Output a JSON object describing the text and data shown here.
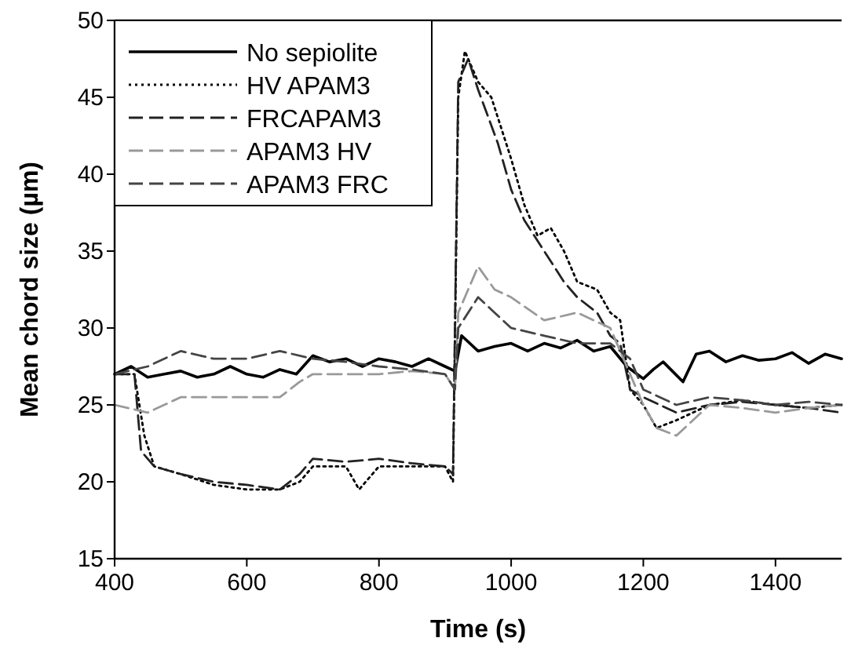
{
  "chart_data": {
    "type": "line",
    "xlabel": "Time (s)",
    "ylabel": "Mean chord size (µm)",
    "xlim": [
      400,
      1500
    ],
    "xticks": [
      400,
      600,
      800,
      1000,
      1200,
      1400
    ],
    "ylim": [
      15,
      50
    ],
    "yticks": [
      15,
      20,
      25,
      30,
      35,
      40,
      45,
      50
    ],
    "grid": false,
    "legend": "top left",
    "marker": "none",
    "series": [
      {
        "name": "No sepiolite",
        "color": "#000000",
        "line_style": "solid",
        "x": [
          400,
          425,
          450,
          475,
          500,
          525,
          550,
          575,
          600,
          625,
          650,
          675,
          700,
          725,
          750,
          775,
          800,
          825,
          850,
          875,
          900,
          915,
          925,
          950,
          975,
          1000,
          1025,
          1050,
          1075,
          1100,
          1125,
          1150,
          1175,
          1200,
          1215,
          1230,
          1260,
          1280,
          1300,
          1325,
          1350,
          1375,
          1400,
          1425,
          1450,
          1475,
          1500
        ],
        "values": [
          27,
          27.5,
          26.8,
          27,
          27.2,
          26.8,
          27,
          27.5,
          27,
          26.8,
          27.3,
          27,
          28.2,
          27.8,
          28,
          27.5,
          28,
          27.8,
          27.5,
          28,
          27.5,
          27.2,
          29.5,
          28.5,
          28.8,
          29,
          28.5,
          29,
          28.7,
          29.2,
          28.5,
          28.8,
          27.5,
          26.7,
          27.3,
          27.8,
          26.5,
          28.3,
          28.5,
          27.8,
          28.2,
          27.9,
          28,
          28.4,
          27.7,
          28.3,
          28
        ]
      },
      {
        "name": "HV APAM3",
        "color": "#000000",
        "line_style": "dotted",
        "x": [
          400,
          430,
          445,
          460,
          500,
          550,
          600,
          650,
          680,
          700,
          750,
          770,
          800,
          850,
          900,
          912,
          920,
          930,
          950,
          970,
          1000,
          1020,
          1040,
          1060,
          1080,
          1100,
          1130,
          1150,
          1165,
          1180,
          1200,
          1220,
          1250,
          1300,
          1350,
          1400,
          1450,
          1500
        ],
        "values": [
          27,
          27,
          23,
          21,
          20.5,
          19.8,
          19.5,
          19.5,
          20,
          21,
          21,
          19.5,
          21,
          21,
          21,
          20,
          45,
          48,
          46,
          45,
          41,
          38,
          36,
          36.5,
          35,
          33,
          32.5,
          31,
          30.5,
          26,
          25,
          23.5,
          24,
          25,
          25.3,
          25,
          24.8,
          25
        ]
      },
      {
        "name": "FRCAPAM3",
        "color": "#222222",
        "line_style": "dashed",
        "x": [
          400,
          430,
          440,
          460,
          500,
          550,
          600,
          650,
          680,
          700,
          750,
          800,
          850,
          900,
          912,
          920,
          935,
          950,
          980,
          1000,
          1020,
          1050,
          1080,
          1100,
          1130,
          1150,
          1165,
          1180,
          1200,
          1250,
          1300,
          1350,
          1400,
          1450,
          1500
        ],
        "values": [
          27,
          27,
          22,
          21,
          20.5,
          20,
          19.8,
          19.5,
          20.5,
          21.5,
          21.3,
          21.5,
          21.2,
          21,
          20.5,
          46,
          47.5,
          45.5,
          42,
          39,
          37,
          35,
          33,
          32,
          31,
          29.5,
          29,
          26,
          25.5,
          24.5,
          25,
          25.2,
          25,
          24.8,
          24.5
        ]
      },
      {
        "name": "APAM3 HV",
        "color": "#999999",
        "line_style": "dashed",
        "x": [
          400,
          450,
          500,
          550,
          600,
          650,
          680,
          700,
          750,
          800,
          850,
          900,
          915,
          920,
          950,
          975,
          1000,
          1050,
          1100,
          1150,
          1180,
          1200,
          1220,
          1250,
          1300,
          1350,
          1400,
          1450,
          1500
        ],
        "values": [
          25,
          24.5,
          25.5,
          25.5,
          25.5,
          25.5,
          26.5,
          27,
          27,
          27,
          27.2,
          27,
          26,
          31,
          34,
          32.5,
          32,
          30.5,
          31,
          30,
          27,
          25,
          23.5,
          23,
          25,
          24.8,
          24.5,
          24.8,
          25
        ]
      },
      {
        "name": "APAM3 FRC",
        "color": "#444444",
        "line_style": "dashed",
        "x": [
          400,
          450,
          500,
          550,
          600,
          650,
          700,
          750,
          800,
          850,
          900,
          915,
          920,
          950,
          975,
          1000,
          1050,
          1100,
          1150,
          1180,
          1200,
          1250,
          1300,
          1350,
          1400,
          1450,
          1500
        ],
        "values": [
          27,
          27.5,
          28.5,
          28,
          28,
          28.5,
          28,
          27.8,
          27.5,
          27.3,
          27,
          26,
          30,
          32,
          31,
          30,
          29.5,
          29,
          29,
          28,
          26,
          25,
          25.5,
          25.3,
          25,
          25.2,
          25
        ]
      }
    ]
  }
}
